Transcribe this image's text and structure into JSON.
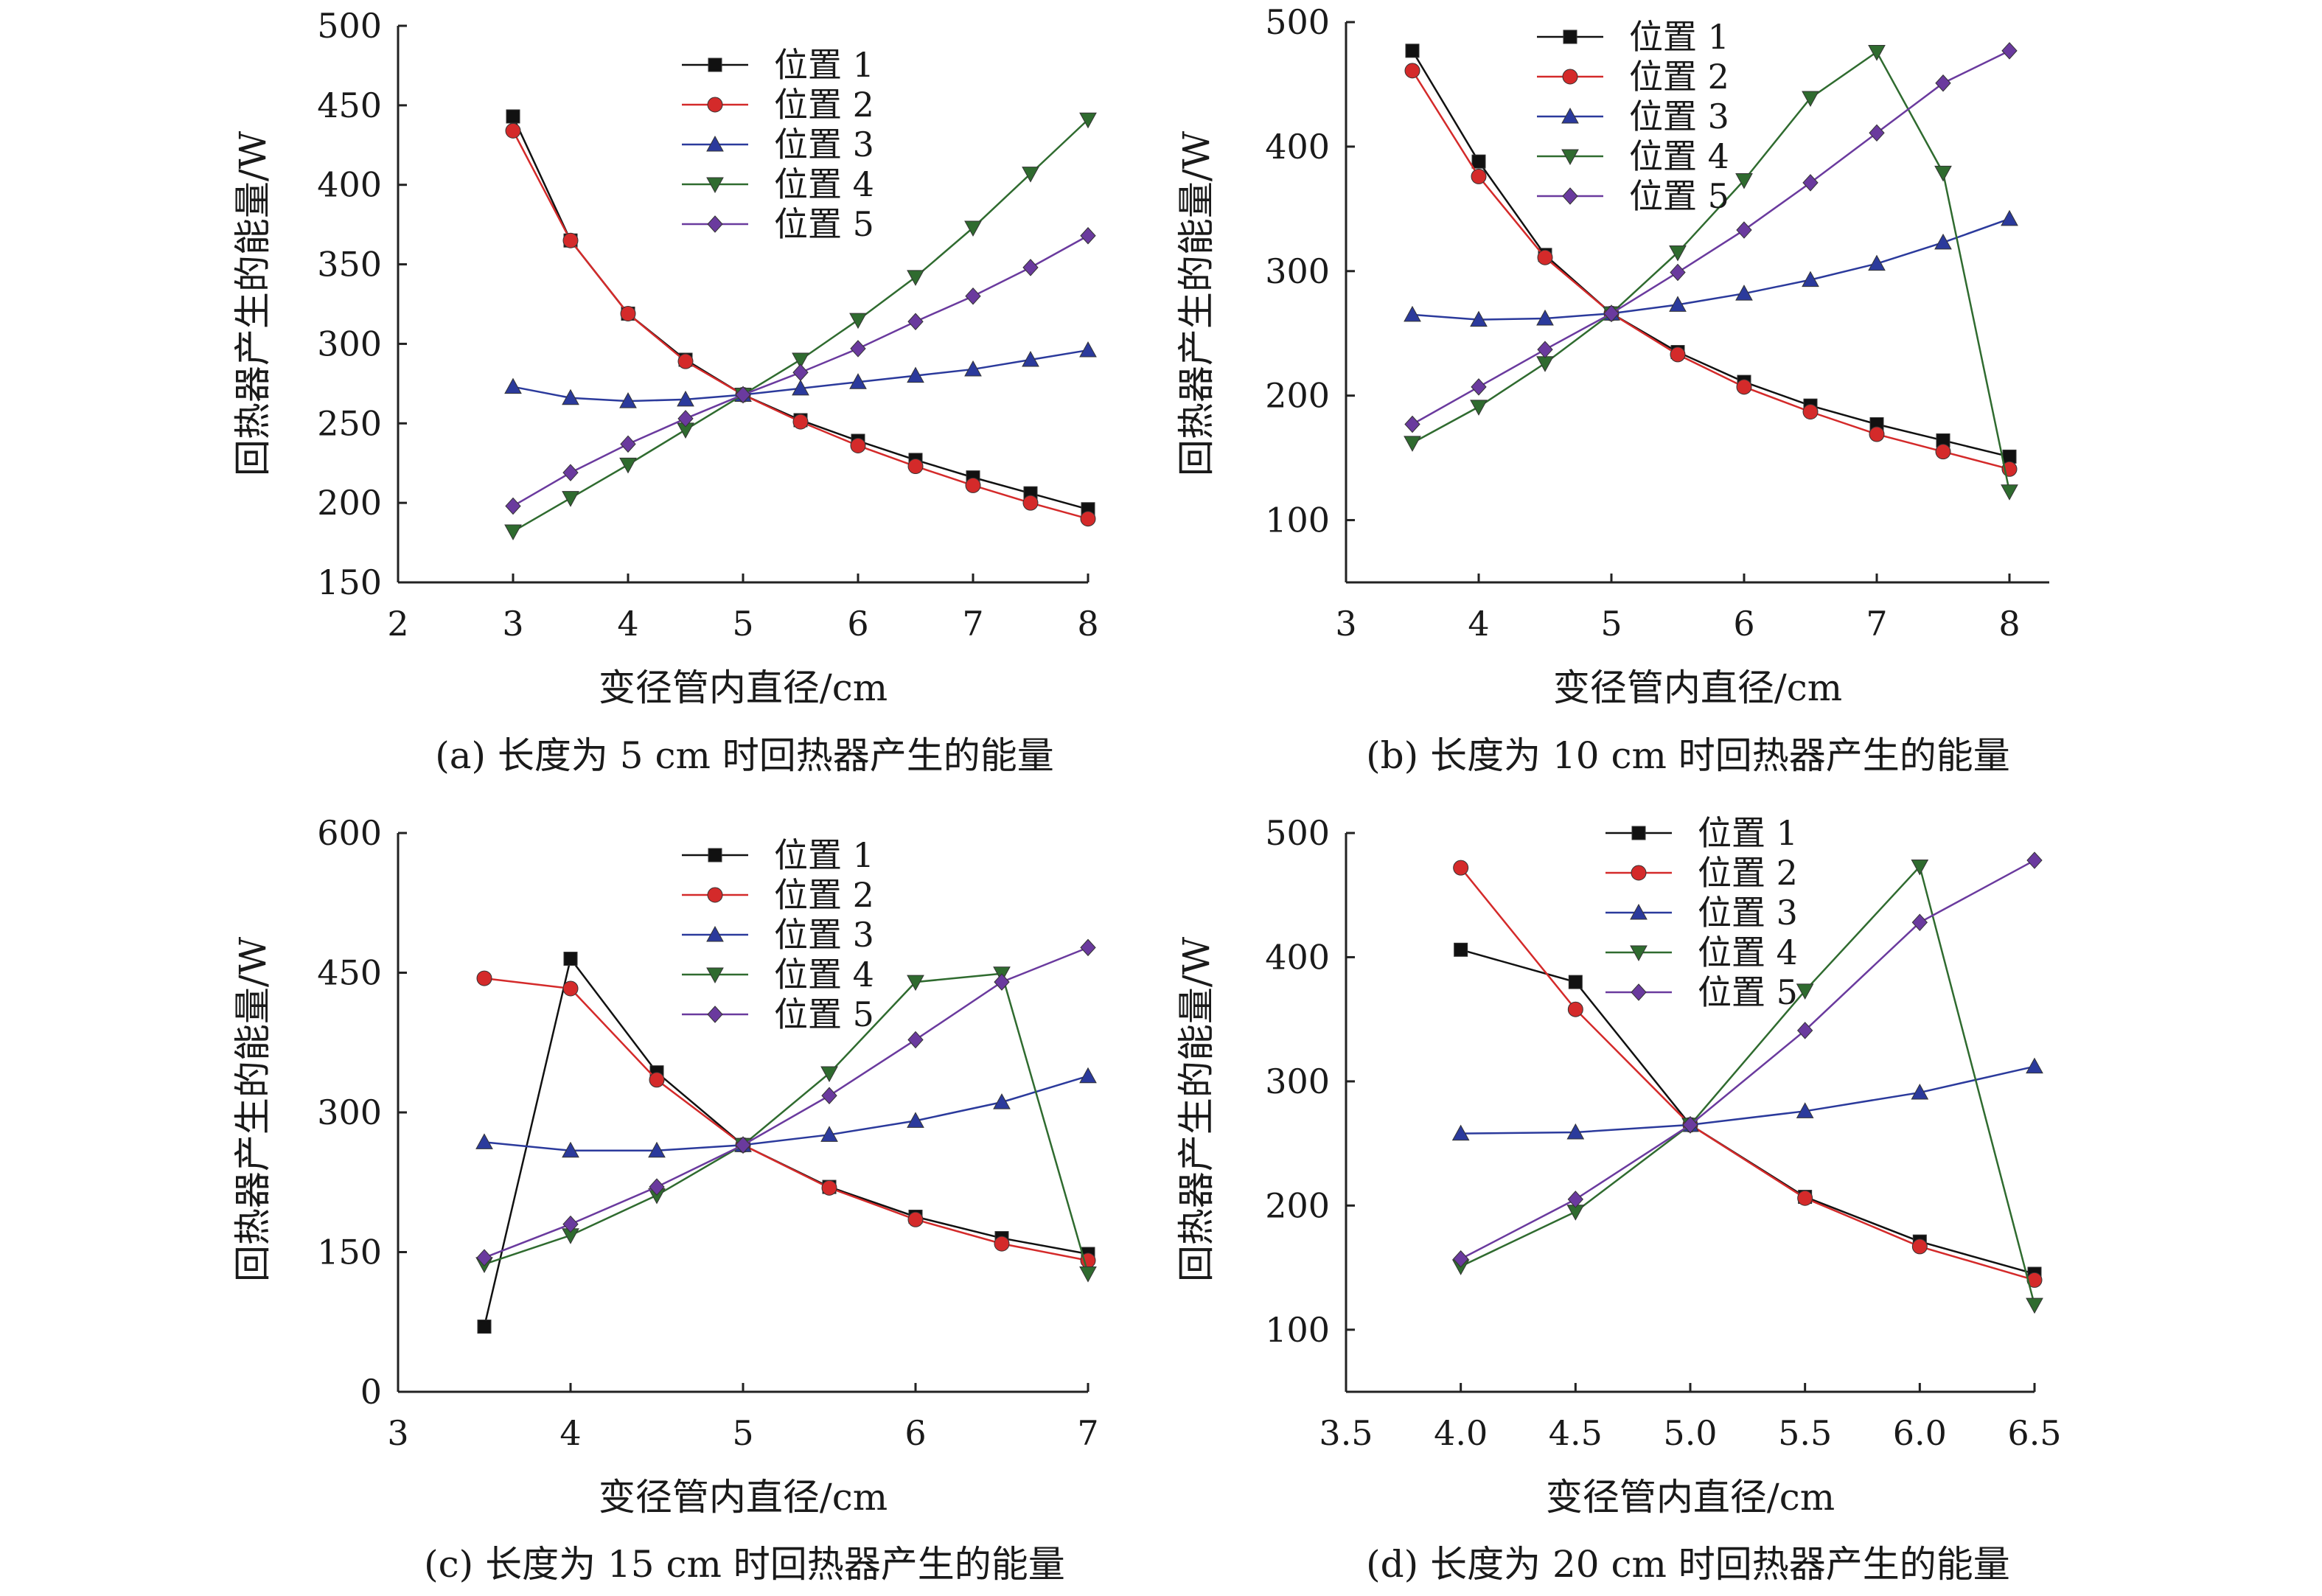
{
  "colors": {
    "s1": "#111111",
    "s2": "#d42a2a",
    "s3": "#2b3a9c",
    "s4": "#2f6b2f",
    "s5": "#6a3a9e"
  },
  "chart_data": [
    {
      "type": "line",
      "id": "a",
      "caption": "(a) 长度为 5 cm 时回热器产生的能量",
      "xlabel": "变径管内直径/cm",
      "ylabel": "回热器产生的能量/W",
      "xlim": [
        2,
        8
      ],
      "ylim": [
        150,
        500
      ],
      "xticks": [
        2,
        3,
        4,
        5,
        6,
        7,
        8
      ],
      "xtick_labels": [
        "2",
        "3",
        "4",
        "5",
        "6",
        "7",
        "8"
      ],
      "yticks": [
        150,
        200,
        250,
        300,
        350,
        400,
        450,
        500
      ],
      "ytick_labels": [
        "150",
        "200",
        "250",
        "300",
        "350",
        "400",
        "450",
        "500"
      ],
      "legend": "top-center",
      "x": [
        3,
        3.5,
        4,
        4.5,
        5,
        5.5,
        6,
        6.5,
        7,
        7.5,
        8
      ],
      "series": [
        {
          "name": "位置 1",
          "values": [
            443,
            365,
            319,
            290,
            268,
            252,
            239,
            227,
            216,
            206,
            196
          ]
        },
        {
          "name": "位置 2",
          "values": [
            434,
            365,
            319,
            289,
            268,
            251,
            236,
            223,
            211,
            200,
            190
          ]
        },
        {
          "name": "位置 3",
          "values": [
            273,
            266,
            264,
            265,
            268,
            272,
            276,
            280,
            284,
            290,
            296
          ]
        },
        {
          "name": "位置 4",
          "values": [
            182,
            203,
            224,
            246,
            268,
            290,
            315,
            342,
            373,
            407,
            441
          ]
        },
        {
          "name": "位置 5",
          "values": [
            198,
            219,
            237,
            253,
            268,
            282,
            297,
            314,
            330,
            348,
            368
          ]
        }
      ]
    },
    {
      "type": "line",
      "id": "b",
      "caption": "(b) 长度为 10 cm 时回热器产生的能量",
      "xlabel": "变径管内直径/cm",
      "ylabel": "回热器产生的能量/W",
      "xlim": [
        3,
        8.3
      ],
      "ylim": [
        50,
        500
      ],
      "xticks": [
        3,
        4,
        5,
        6,
        7,
        8
      ],
      "xtick_labels": [
        "3",
        "4",
        "5",
        "6",
        "7",
        "8"
      ],
      "yticks": [
        100,
        200,
        300,
        400,
        500
      ],
      "ytick_labels": [
        "100",
        "200",
        "300",
        "400",
        "500"
      ],
      "legend": "top-left",
      "x": [
        3.5,
        4,
        4.5,
        5,
        5.5,
        6,
        6.5,
        7,
        7.5,
        8
      ],
      "series": [
        {
          "name": "位置 1",
          "values": [
            477,
            388,
            313,
            266,
            235,
            211,
            192,
            177,
            164,
            151
          ]
        },
        {
          "name": "位置 2",
          "values": [
            461,
            376,
            311,
            266,
            233,
            207,
            187,
            169,
            155,
            141
          ]
        },
        {
          "name": "位置 3",
          "values": [
            265,
            261,
            262,
            266,
            273,
            282,
            293,
            306,
            323,
            342
          ]
        },
        {
          "name": "位置 4",
          "values": [
            162,
            191,
            226,
            266,
            315,
            373,
            439,
            476,
            379,
            123
          ]
        },
        {
          "name": "位置 5",
          "values": [
            177,
            207,
            237,
            266,
            299,
            333,
            371,
            411,
            451,
            477
          ]
        }
      ]
    },
    {
      "type": "line",
      "id": "c",
      "caption": "(c) 长度为 15 cm 时回热器产生的能量",
      "xlabel": "变径管内直径/cm",
      "ylabel": "回热器产生的能量/W",
      "xlim": [
        3,
        7
      ],
      "ylim": [
        0,
        600
      ],
      "xticks": [
        3,
        4,
        5,
        6,
        7
      ],
      "xtick_labels": [
        "3",
        "4",
        "5",
        "6",
        "7"
      ],
      "yticks": [
        0,
        150,
        300,
        450,
        600
      ],
      "ytick_labels": [
        "0",
        "150",
        "300",
        "450",
        "600"
      ],
      "legend": "top-center",
      "x": [
        3.5,
        4,
        4.5,
        5,
        5.5,
        6,
        6.5,
        7
      ],
      "series": [
        {
          "name": "位置 1",
          "values": [
            70,
            465,
            343,
            265,
            220,
            188,
            165,
            148
          ]
        },
        {
          "name": "位置 2",
          "values": [
            444,
            433,
            335,
            265,
            219,
            185,
            159,
            141
          ]
        },
        {
          "name": "位置 3",
          "values": [
            268,
            259,
            259,
            265,
            276,
            291,
            311,
            339
          ]
        },
        {
          "name": "位置 4",
          "values": [
            137,
            168,
            211,
            265,
            342,
            440,
            449,
            127
          ]
        },
        {
          "name": "位置 5",
          "values": [
            144,
            180,
            220,
            265,
            318,
            378,
            440,
            477
          ]
        }
      ]
    },
    {
      "type": "line",
      "id": "d",
      "caption": "(d) 长度为 20 cm 时回热器产生的能量",
      "xlabel": "变径管内直径/cm",
      "ylabel": "回热器产生的能量/W",
      "xlim": [
        3.5,
        6.5
      ],
      "ylim": [
        50,
        500
      ],
      "xticks": [
        3.5,
        4.0,
        4.5,
        5.0,
        5.5,
        6.0,
        6.5
      ],
      "xtick_labels": [
        "3.5",
        "4.0",
        "4.5",
        "5.0",
        "5.5",
        "6.0",
        "6.5"
      ],
      "yticks": [
        100,
        200,
        300,
        400,
        500
      ],
      "ytick_labels": [
        "100",
        "200",
        "300",
        "400",
        "500"
      ],
      "legend": "top-center",
      "x": [
        4.0,
        4.5,
        5.0,
        5.5,
        6.0,
        6.5
      ],
      "series": [
        {
          "name": "位置 1",
          "values": [
            406,
            380,
            265,
            207,
            171,
            145
          ]
        },
        {
          "name": "位置 2",
          "values": [
            472,
            358,
            265,
            206,
            167,
            140
          ]
        },
        {
          "name": "位置 3",
          "values": [
            258,
            259,
            265,
            276,
            291,
            312
          ]
        },
        {
          "name": "位置 4",
          "values": [
            151,
            195,
            265,
            373,
            473,
            120
          ]
        },
        {
          "name": "位置 5",
          "values": [
            157,
            205,
            265,
            341,
            428,
            478
          ]
        }
      ]
    }
  ]
}
